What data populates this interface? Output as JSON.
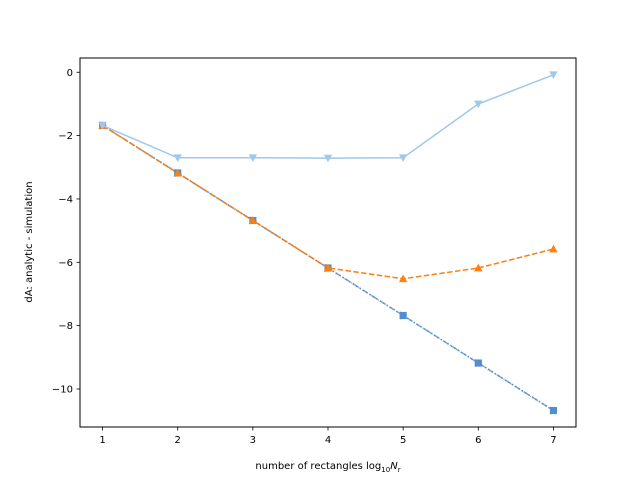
{
  "chart_data": {
    "type": "line",
    "title": "",
    "xlabel": "number of rectangles log",
    "xlabel_sub": "10",
    "xlabel_var": "N",
    "xlabel_var_sub": "r",
    "ylabel": "dA: analytic - simulation",
    "xlim": [
      0.7,
      7.3
    ],
    "ylim": [
      -11.2,
      0.45
    ],
    "xticks": [
      1,
      2,
      3,
      4,
      5,
      6,
      7
    ],
    "yticks": [
      0,
      -2,
      -4,
      -6,
      -8,
      -10
    ],
    "ytick_labels": [
      "0",
      "−2",
      "−4",
      "−6",
      "−8",
      "−10"
    ],
    "grid": false,
    "legend": "none",
    "x": [
      1,
      2,
      3,
      4,
      5,
      6,
      7
    ],
    "series": [
      {
        "values": [
          -1.68,
          -3.18,
          -4.68,
          -6.18,
          -7.68,
          -9.18,
          -10.68
        ],
        "color": "#7fa7c9",
        "style": "dashdot",
        "marker": "triangle-right"
      },
      {
        "values": [
          -1.68,
          -3.18,
          -4.68,
          -6.18,
          -7.68,
          -9.18,
          -10.68
        ],
        "color": "#4f8fcf",
        "style": "dotted",
        "marker": "square"
      },
      {
        "values": [
          -1.68,
          -3.18,
          -4.68,
          -6.18,
          -6.52,
          -6.18,
          -5.58
        ],
        "color": "#ff7f0e",
        "style": "dashed",
        "marker": "triangle-up"
      },
      {
        "values": [
          -1.68,
          -2.7,
          -2.7,
          -2.71,
          -2.7,
          -1.0,
          -0.08
        ],
        "color": "#9fc8ec",
        "style": "solid",
        "marker": "triangle-down"
      }
    ]
  }
}
